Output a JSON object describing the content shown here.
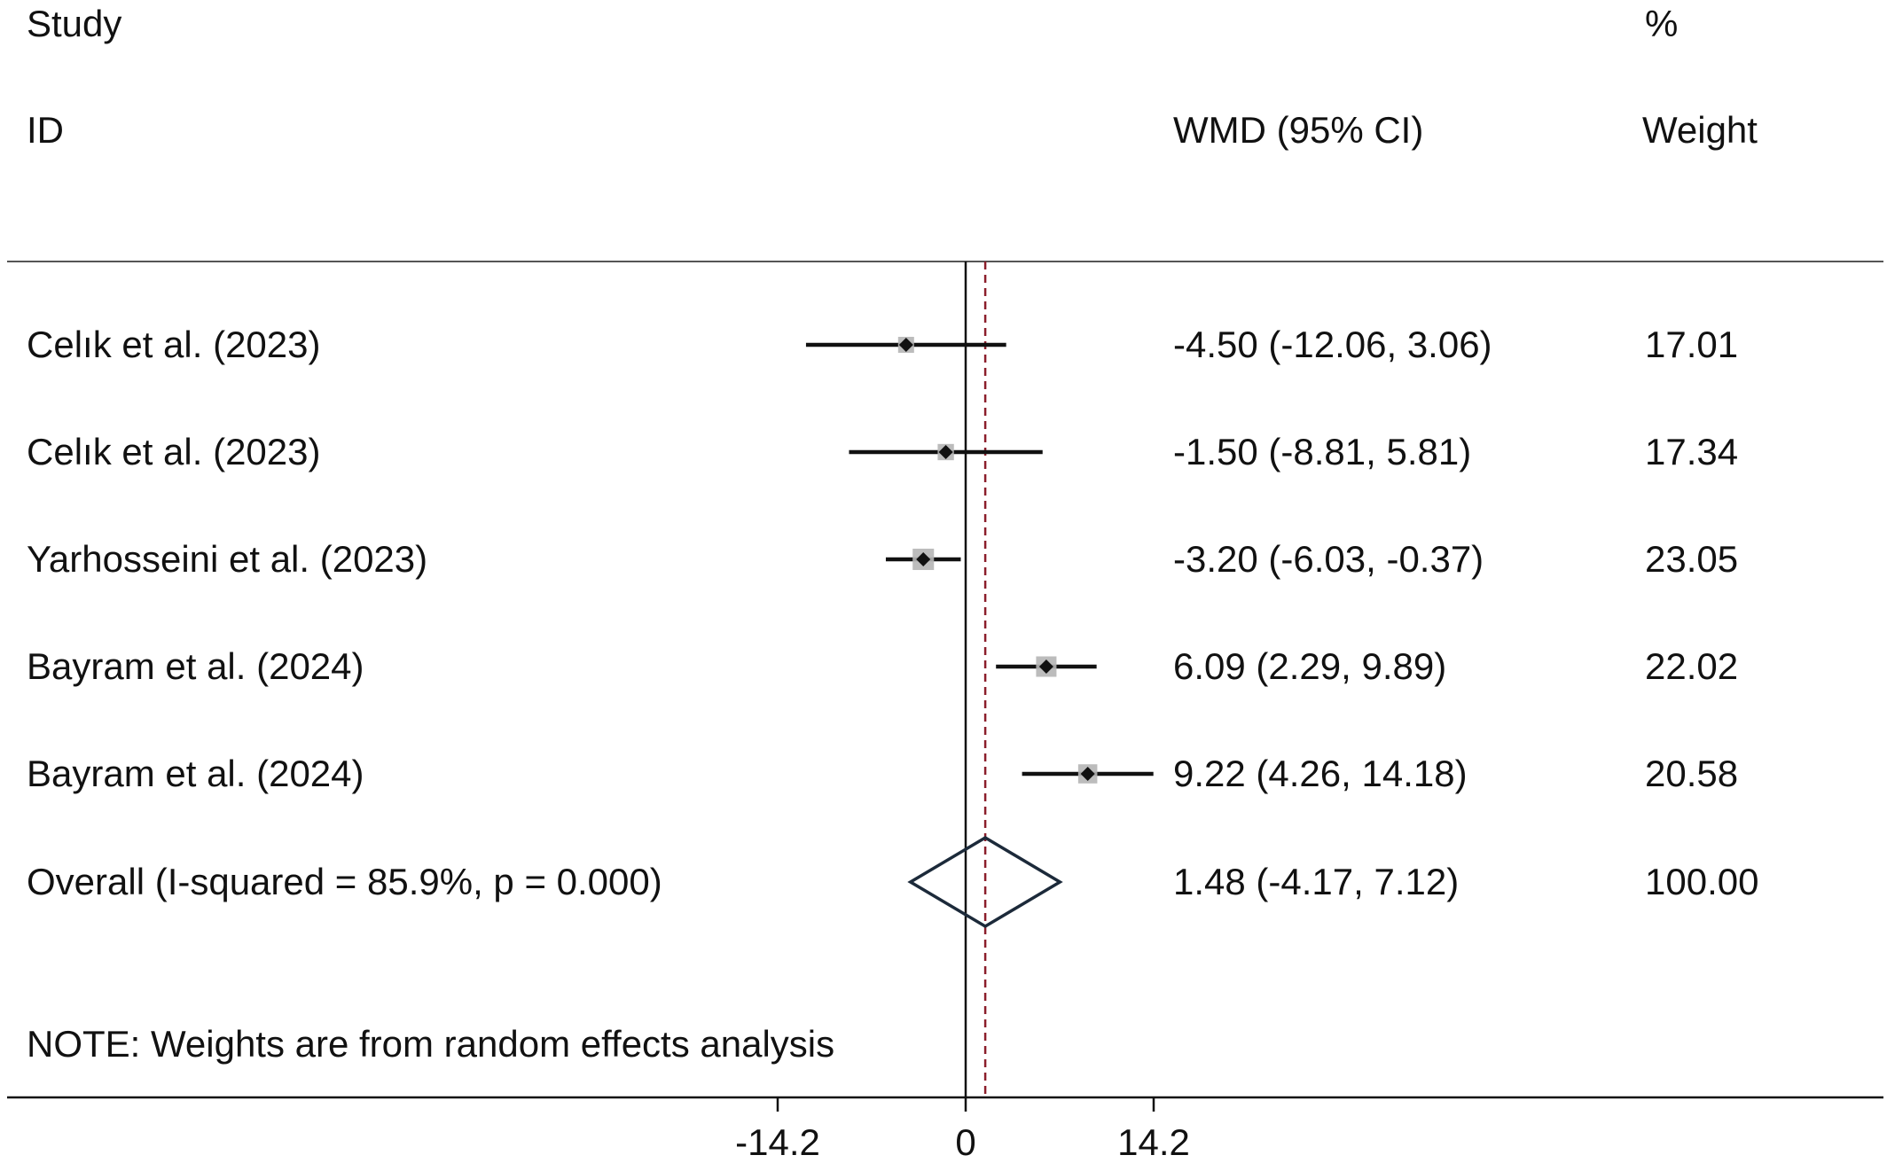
{
  "header": {
    "study_line1": "Study",
    "study_line2": "ID",
    "effect_header": "WMD (95% CI)",
    "weight_line1": "%",
    "weight_line2": "Weight"
  },
  "note": "NOTE: Weights are from random effects analysis",
  "chart_data": {
    "type": "forest",
    "xlabel": "",
    "xlim": [
      -14.2,
      14.2
    ],
    "xticks": [
      {
        "value": -14.2,
        "label": "-14.2"
      },
      {
        "value": 0,
        "label": "0"
      },
      {
        "value": 14.2,
        "label": "14.2"
      }
    ],
    "null_line": 0,
    "overall_line": 1.48,
    "colors": {
      "ink": "#111111",
      "dashed_line": "#8b1e2b",
      "weight_box": "#b5b5b5",
      "diamond": "#1c2a3a"
    },
    "studies": [
      {
        "label": "Celık et al. (2023)",
        "estimate": -4.5,
        "lower": -12.06,
        "upper": 3.06,
        "ci_text": "-4.50 (-12.06, 3.06)",
        "weight": 17.01,
        "weight_text": "17.01"
      },
      {
        "label": "Celık et al. (2023)",
        "estimate": -1.5,
        "lower": -8.81,
        "upper": 5.81,
        "ci_text": "-1.50 (-8.81, 5.81)",
        "weight": 17.34,
        "weight_text": "17.34"
      },
      {
        "label": "Yarhosseini et al. (2023)",
        "estimate": -3.2,
        "lower": -6.03,
        "upper": -0.37,
        "ci_text": "-3.20 (-6.03, -0.37)",
        "weight": 23.05,
        "weight_text": "23.05"
      },
      {
        "label": "Bayram et al. (2024)",
        "estimate": 6.09,
        "lower": 2.29,
        "upper": 9.89,
        "ci_text": "6.09 (2.29, 9.89)",
        "weight": 22.02,
        "weight_text": "22.02"
      },
      {
        "label": "Bayram et al. (2024)",
        "estimate": 9.22,
        "lower": 4.26,
        "upper": 14.18,
        "ci_text": "9.22 (4.26, 14.18)",
        "weight": 20.58,
        "weight_text": "20.58"
      }
    ],
    "overall": {
      "label": "Overall  (I-squared = 85.9%, p = 0.000)",
      "estimate": 1.48,
      "lower": -4.17,
      "upper": 7.12,
      "ci_text": "1.48 (-4.17, 7.12)",
      "weight": 100.0,
      "weight_text": "100.00"
    }
  }
}
